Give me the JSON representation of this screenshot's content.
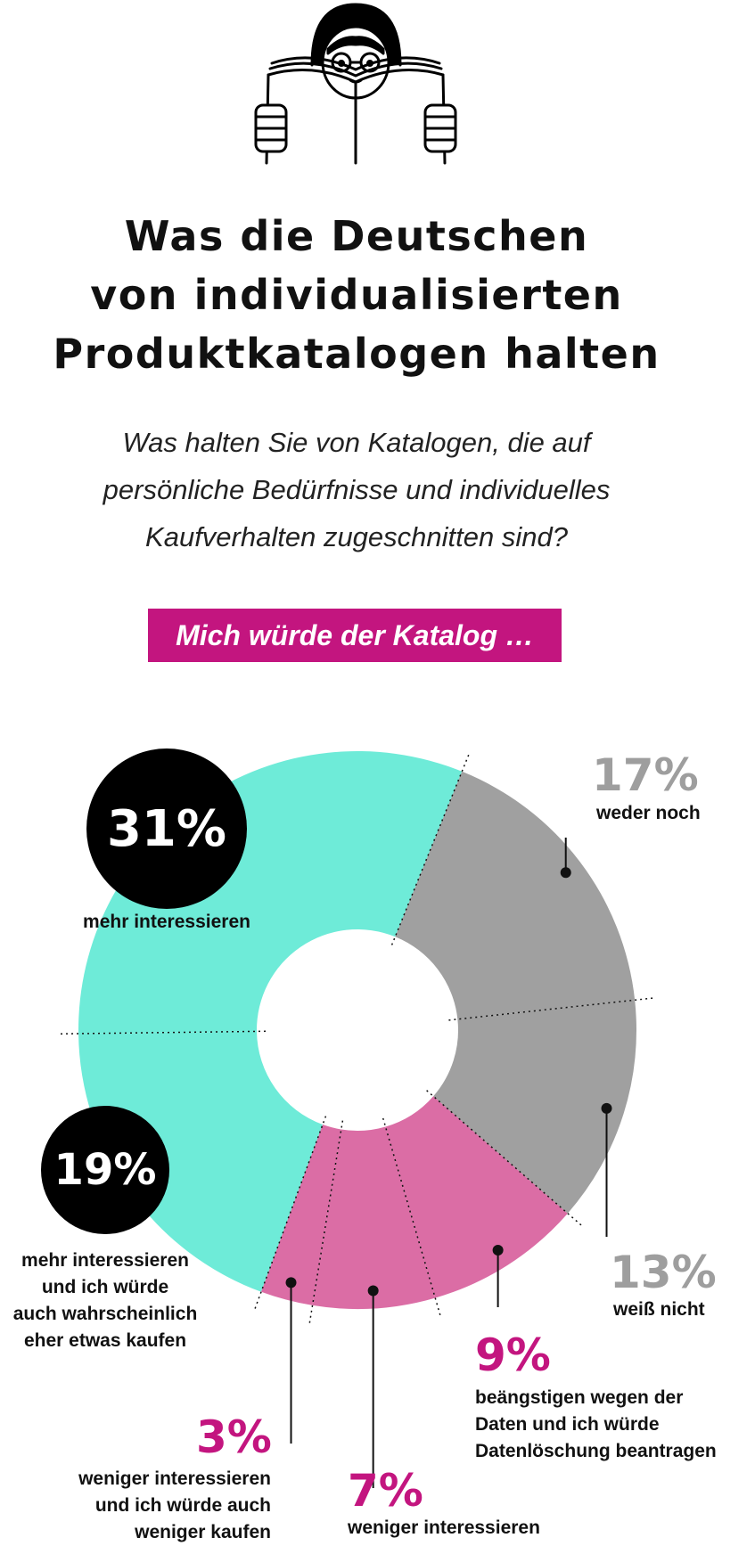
{
  "title_lines": [
    "Was die Deutschen",
    "von individualisierten",
    "Produktkatalogen halten"
  ],
  "subtitle_lines": [
    "Was halten Sie von Katalogen, die auf",
    "persönliche Bedürfnisse und individuelles",
    "Kaufverhalten zugeschnitten sind?"
  ],
  "banner": "Mich würde der Katalog …",
  "colors": {
    "teal": "#6eebd8",
    "gray": "#a0a0a0",
    "magenta": "#db6da5",
    "accent_text": "#c3157f",
    "gray_text": "#9e9e9e"
  },
  "chart_data": {
    "type": "pie",
    "variant": "donut",
    "title": "Mich würde der Katalog …",
    "segments": [
      {
        "pct_label": "31%",
        "value": 31,
        "label_lines": [
          "mehr interessieren"
        ],
        "color": "#6eebd8"
      },
      {
        "pct_label": "19%",
        "value": 19,
        "label_lines": [
          "mehr interessieren",
          "und ich würde",
          "auch wahrscheinlich",
          "eher etwas kaufen"
        ],
        "color": "#6eebd8"
      },
      {
        "pct_label": "3%",
        "value": 3,
        "label_lines": [
          "weniger interessieren",
          "und ich würde auch",
          "weniger kaufen"
        ],
        "color": "#db6da5"
      },
      {
        "pct_label": "7%",
        "value": 7,
        "label_lines": [
          "weniger interessieren"
        ],
        "color": "#db6da5"
      },
      {
        "pct_label": "9%",
        "value": 9,
        "label_lines": [
          "beängstigen wegen der",
          "Daten und ich würde",
          "Datenlöschung beantragen"
        ],
        "color": "#db6da5"
      },
      {
        "pct_label": "13%",
        "value": 13,
        "label_lines": [
          "weiß nicht"
        ],
        "color": "#a0a0a0"
      },
      {
        "pct_label": "17%",
        "value": 17,
        "label_lines": [
          "weder noch"
        ],
        "color": "#a0a0a0"
      }
    ]
  }
}
